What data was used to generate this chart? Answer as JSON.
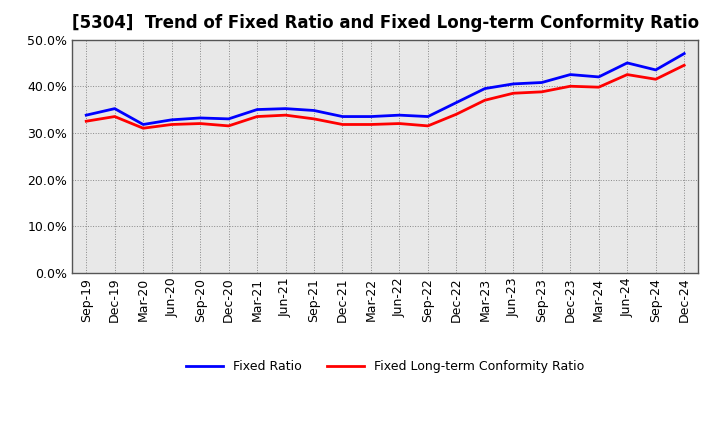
{
  "title": "[5304]  Trend of Fixed Ratio and Fixed Long-term Conformity Ratio",
  "x_labels": [
    "Sep-19",
    "Dec-19",
    "Mar-20",
    "Jun-20",
    "Sep-20",
    "Dec-20",
    "Mar-21",
    "Jun-21",
    "Sep-21",
    "Dec-21",
    "Mar-22",
    "Jun-22",
    "Sep-22",
    "Dec-22",
    "Mar-23",
    "Jun-23",
    "Sep-23",
    "Dec-23",
    "Mar-24",
    "Jun-24",
    "Sep-24",
    "Dec-24"
  ],
  "fixed_ratio": [
    33.8,
    35.2,
    31.8,
    32.8,
    33.2,
    33.0,
    35.0,
    35.2,
    34.8,
    33.5,
    33.5,
    33.8,
    33.5,
    36.5,
    39.5,
    40.5,
    40.8,
    42.5,
    42.0,
    45.0,
    43.5,
    47.0
  ],
  "fixed_lt_ratio": [
    32.5,
    33.5,
    31.0,
    31.8,
    32.0,
    31.5,
    33.5,
    33.8,
    33.0,
    31.8,
    31.8,
    32.0,
    31.5,
    34.0,
    37.0,
    38.5,
    38.8,
    40.0,
    39.8,
    42.5,
    41.5,
    44.5
  ],
  "fixed_ratio_color": "#0000FF",
  "fixed_lt_ratio_color": "#FF0000",
  "ylim": [
    0,
    50
  ],
  "yticks": [
    0,
    10,
    20,
    30,
    40,
    50
  ],
  "plot_bg_color": "#E8E8E8",
  "fig_bg_color": "#FFFFFF",
  "grid_color": "#888888",
  "spine_color": "#555555",
  "line_width": 2.0,
  "title_fontsize": 12,
  "tick_fontsize": 9,
  "legend_fontsize": 9
}
